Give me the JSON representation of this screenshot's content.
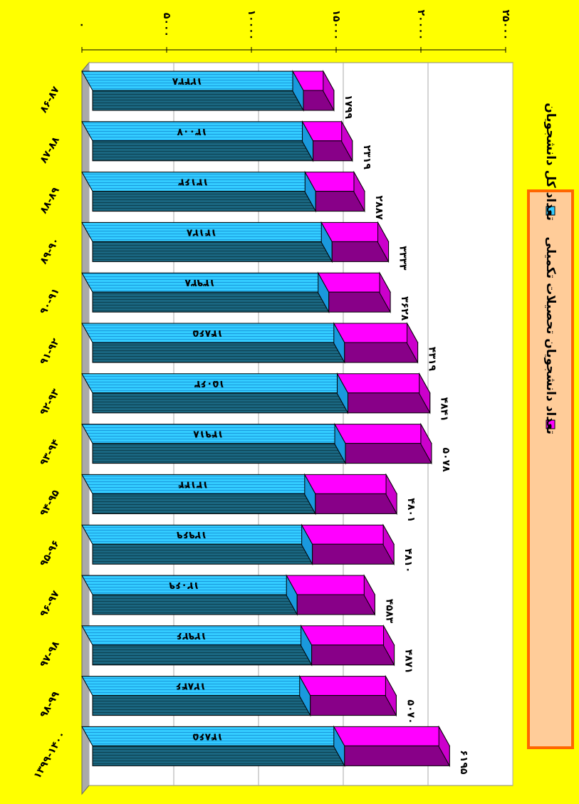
{
  "chart_data": {
    "type": "bar",
    "categories": [
      "۸۶-۸۷",
      "۸۷-۸۸",
      "۸۸-۸۹",
      "۸۹-۹۰",
      "۹۰-۹۱",
      "۹۱-۹۲",
      "۹۲-۹۳",
      "۹۳-۹۴",
      "۹۴-۹۵",
      "۹۵-۹۶",
      "۹۶-۹۷",
      "۹۷-۹۸",
      "۹۸-۹۹",
      "۱۳۹۹-۱۴۰۰"
    ],
    "series": [
      {
        "name": "تعداد کل دانشجویان",
        "color": "#33ccff",
        "values": [
          12438,
          13007,
          13163,
          14128,
          13938,
          14865,
          15063,
          14918,
          13144,
          12969,
          12069,
          12926,
          12846,
          14865
        ],
        "value_labels": [
          "۱۲۴۳۸",
          "۱۳۰۰۷",
          "۱۳۱۶۳",
          "۱۴۱۲۸",
          "۱۳۹۳۸",
          "۱۴۸۶۵",
          "۱۵۰۶۳",
          "۱۴۹۱۸",
          "۱۳۱۴۴",
          "۱۲۹۶۹",
          "۱۲۰۶۹",
          "۱۲۹۲۶",
          "۱۲۸۴۶",
          "۱۴۸۶۵"
        ]
      },
      {
        "name": "تعداد دانشجویان تحصیلات تکمیلی",
        "color": "#ff00ff",
        "values": [
          1799,
          2319,
          2887,
          3333,
          3628,
          4319,
          4841,
          5078,
          4801,
          4810,
          4583,
          4871,
          5070,
          6195
        ],
        "value_labels": [
          "۱۷۹۹",
          "۲۳۱۹",
          "۲۸۸۷",
          "۳۳۳۳",
          "۳۶۲۸",
          "۴۳۱۹",
          "۴۸۴۱",
          "۵۰۷۸",
          "۴۸۰۱",
          "۴۸۱۰",
          "۴۵۸۳",
          "۴۸۷۱",
          "۵۰۷۰",
          "۶۱۹۵"
        ]
      }
    ],
    "ylim": [
      0,
      25000
    ],
    "yticks": [
      {
        "value": 0,
        "label": "۰"
      },
      {
        "value": 5000,
        "label": "۵۰۰۰"
      },
      {
        "value": 10000,
        "label": "۱۰۰۰۰"
      },
      {
        "value": 15000,
        "label": "۱۵۰۰۰"
      },
      {
        "value": 20000,
        "label": "۲۰۰۰۰"
      },
      {
        "value": 25000,
        "label": "۲۵۰۰۰"
      }
    ],
    "grid": true
  }
}
